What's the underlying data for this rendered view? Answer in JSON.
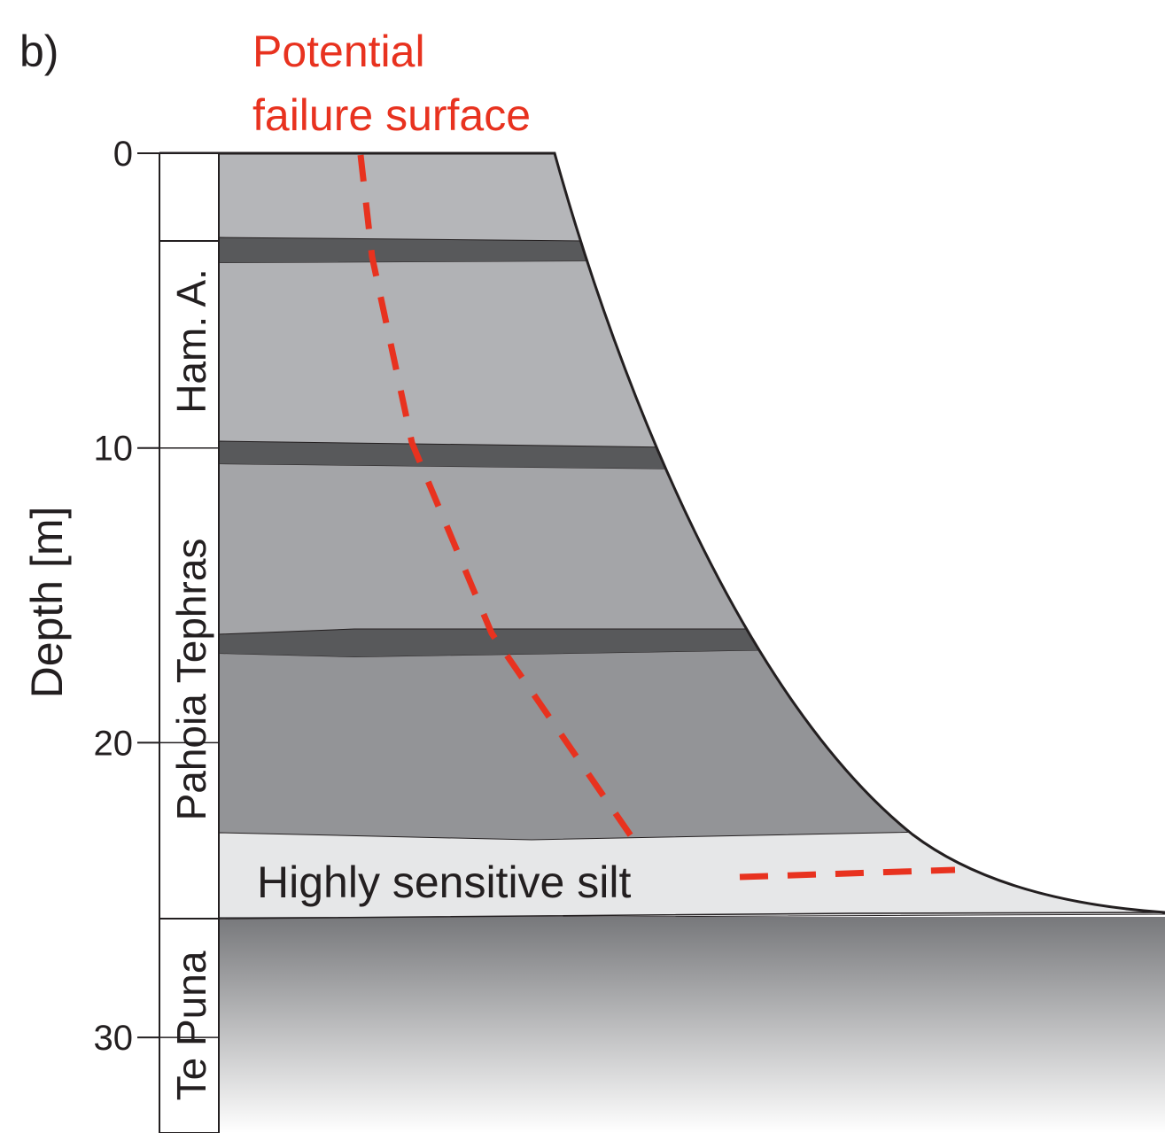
{
  "panel_label": "b)",
  "annotation": {
    "lines": [
      "Potential",
      "failure surface"
    ]
  },
  "depth_axis": {
    "label": "Depth [m]",
    "ticks": [
      0,
      10,
      20,
      30
    ]
  },
  "units": [
    {
      "label": "Ham. A."
    },
    {
      "label": "Pahoia Tephras"
    },
    {
      "label": "Te Puna"
    }
  ],
  "layer_label": "Highly sensitive silt"
}
